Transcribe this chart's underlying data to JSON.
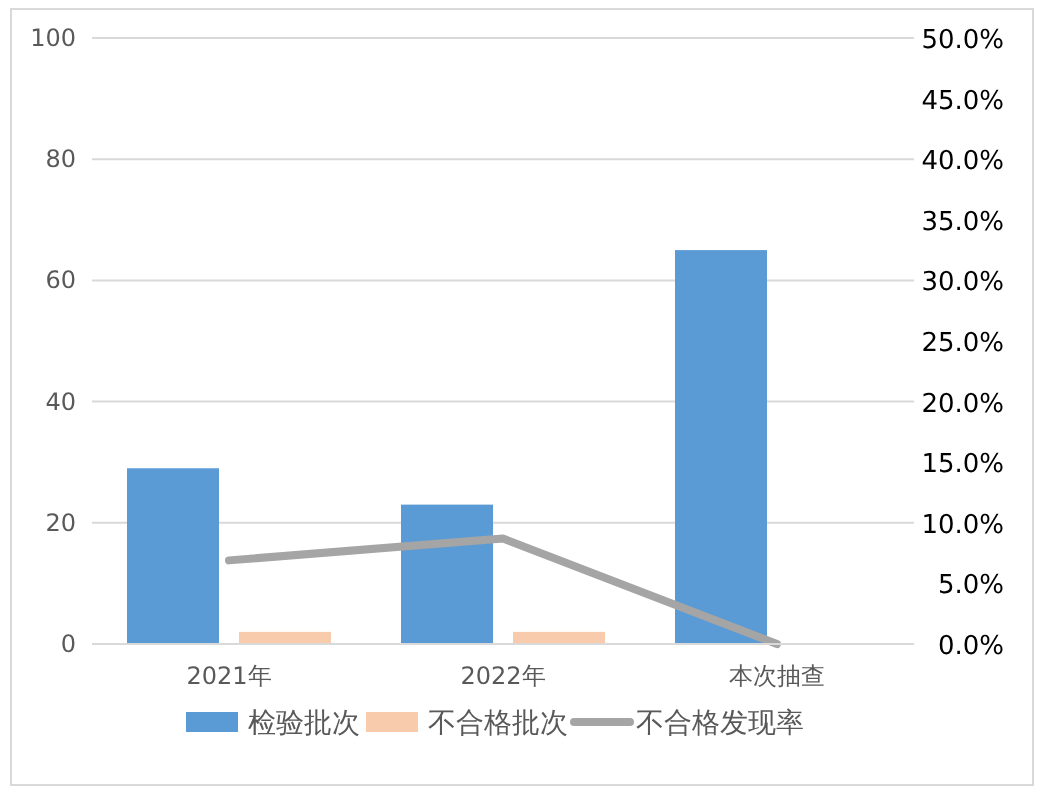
{
  "chart_data": {
    "type": "bar",
    "categories": [
      "2021年",
      "2022年",
      "本次抽查"
    ],
    "series": [
      {
        "name": "检验批次",
        "color": "#5b9bd5",
        "values": [
          29,
          23,
          65
        ]
      },
      {
        "name": "不合格批次",
        "color": "#f8cbad",
        "values": [
          2,
          2,
          0
        ]
      },
      {
        "name": "不合格发现率",
        "type": "line",
        "axis": "y2",
        "color": "#a5a5a5",
        "values": [
          6.9,
          8.7,
          0
        ]
      }
    ],
    "ylim": [
      0,
      100
    ],
    "yticks": [
      0,
      20,
      40,
      60,
      80,
      100
    ],
    "y2lim": [
      0,
      50
    ],
    "y2ticks": [
      {
        "value": 0,
        "label": "0.0%"
      },
      {
        "value": 5,
        "label": "5.0%"
      },
      {
        "value": 10,
        "label": "10.0%"
      },
      {
        "value": 15,
        "label": "15.0%"
      },
      {
        "value": 20,
        "label": "20.0%"
      },
      {
        "value": 25,
        "label": "25.0%"
      },
      {
        "value": 30,
        "label": "30.0%"
      },
      {
        "value": 35,
        "label": "35.0%"
      },
      {
        "value": 40,
        "label": "40.0%"
      },
      {
        "value": 45,
        "label": "45.0%"
      },
      {
        "value": 50,
        "label": "50.0%"
      }
    ],
    "grid": "y",
    "legend": "bottom",
    "marker": "none"
  }
}
